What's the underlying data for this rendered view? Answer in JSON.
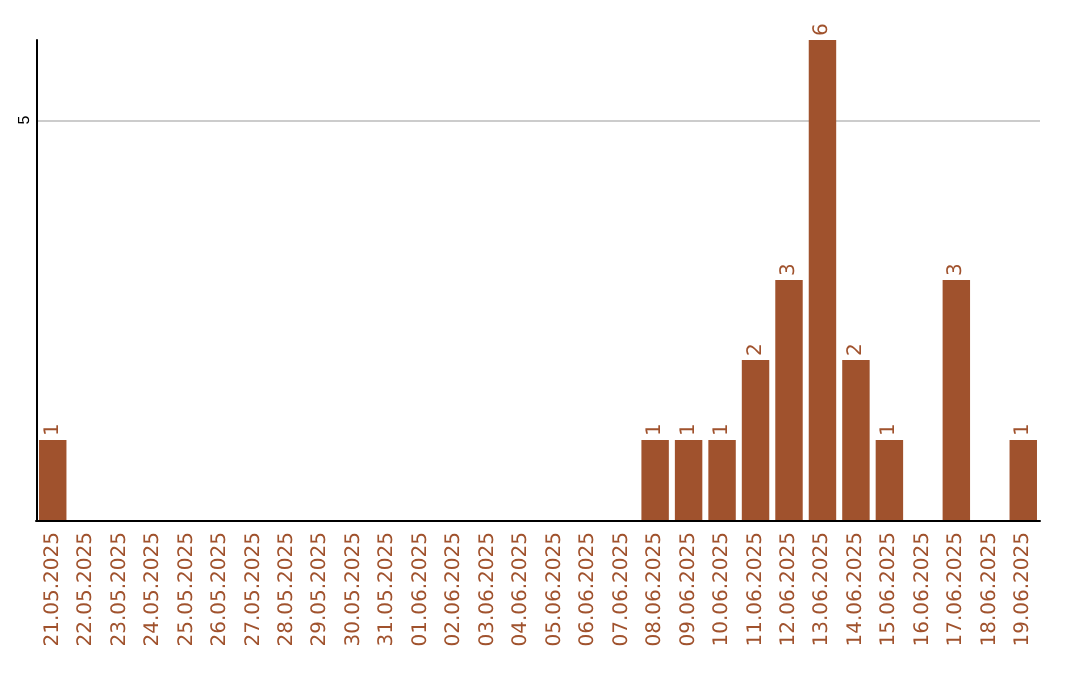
{
  "chart_data": {
    "type": "bar",
    "categories": [
      "21.05.2025",
      "22.05.2025",
      "23.05.2025",
      "24.05.2025",
      "25.05.2025",
      "26.05.2025",
      "27.05.2025",
      "28.05.2025",
      "29.05.2025",
      "30.05.2025",
      "31.05.2025",
      "01.06.2025",
      "02.06.2025",
      "03.06.2025",
      "04.06.2025",
      "05.06.2025",
      "06.06.2025",
      "07.06.2025",
      "08.06.2025",
      "09.06.2025",
      "10.06.2025",
      "11.06.2025",
      "12.06.2025",
      "13.06.2025",
      "14.06.2025",
      "15.06.2025",
      "16.06.2025",
      "17.06.2025",
      "18.06.2025",
      "19.06.2025"
    ],
    "values": [
      1,
      0,
      0,
      0,
      0,
      0,
      0,
      0,
      0,
      0,
      0,
      0,
      0,
      0,
      0,
      0,
      0,
      0,
      1,
      1,
      1,
      2,
      3,
      6,
      2,
      1,
      0,
      3,
      0,
      1
    ],
    "value_labels": [
      "1",
      null,
      null,
      null,
      null,
      null,
      null,
      null,
      null,
      null,
      null,
      null,
      null,
      null,
      null,
      null,
      null,
      null,
      "1",
      "1",
      "1",
      "2",
      "3",
      "6",
      "2",
      "1",
      null,
      "3",
      null,
      "1"
    ],
    "color": "#a0522d",
    "ylim": [
      0,
      6
    ],
    "yticks": [
      5
    ],
    "grid": "y"
  }
}
